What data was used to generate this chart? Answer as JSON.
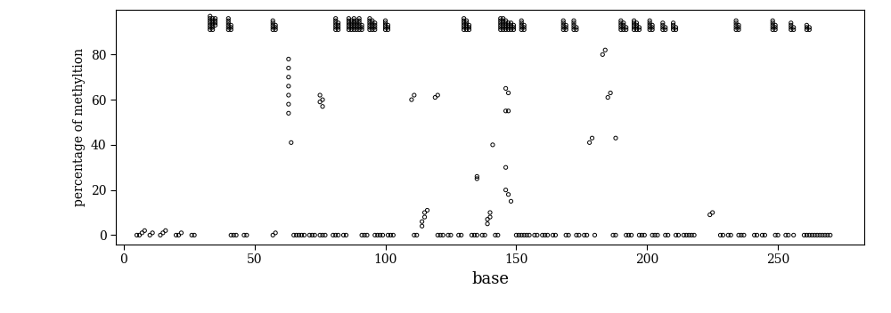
{
  "title": "",
  "xlabel": "base",
  "ylabel": "percentage of methyltion",
  "xlim": [
    -3,
    283
  ],
  "ylim": [
    -4,
    100
  ],
  "xticks": [
    0,
    50,
    100,
    150,
    200,
    250
  ],
  "yticks": [
    0,
    20,
    40,
    60,
    80
  ],
  "figsize": [
    10.0,
    3.52
  ],
  "dpi": 100,
  "background": "white",
  "marker": "o",
  "markersize": 3.0,
  "color": "black",
  "facecolor": "none",
  "points": [
    [
      5,
      0
    ],
    [
      6,
      0
    ],
    [
      7,
      1
    ],
    [
      8,
      2
    ],
    [
      10,
      0
    ],
    [
      11,
      1
    ],
    [
      14,
      0
    ],
    [
      15,
      1
    ],
    [
      16,
      2
    ],
    [
      20,
      0
    ],
    [
      21,
      0
    ],
    [
      22,
      1
    ],
    [
      26,
      0
    ],
    [
      27,
      0
    ],
    [
      33,
      91
    ],
    [
      33,
      92
    ],
    [
      33,
      93
    ],
    [
      33,
      94
    ],
    [
      33,
      95
    ],
    [
      33,
      96
    ],
    [
      33,
      97
    ],
    [
      34,
      91
    ],
    [
      34,
      92
    ],
    [
      34,
      93
    ],
    [
      34,
      94
    ],
    [
      34,
      95
    ],
    [
      34,
      96
    ],
    [
      35,
      93
    ],
    [
      35,
      94
    ],
    [
      35,
      95
    ],
    [
      35,
      96
    ],
    [
      40,
      91
    ],
    [
      40,
      92
    ],
    [
      40,
      93
    ],
    [
      40,
      94
    ],
    [
      40,
      95
    ],
    [
      40,
      96
    ],
    [
      41,
      91
    ],
    [
      41,
      92
    ],
    [
      41,
      93
    ],
    [
      41,
      0
    ],
    [
      42,
      0
    ],
    [
      43,
      0
    ],
    [
      46,
      0
    ],
    [
      47,
      0
    ],
    [
      57,
      91
    ],
    [
      57,
      92
    ],
    [
      57,
      93
    ],
    [
      57,
      94
    ],
    [
      57,
      95
    ],
    [
      58,
      91
    ],
    [
      58,
      92
    ],
    [
      58,
      93
    ],
    [
      57,
      0
    ],
    [
      58,
      1
    ],
    [
      63,
      78
    ],
    [
      63,
      74
    ],
    [
      63,
      70
    ],
    [
      63,
      66
    ],
    [
      63,
      62
    ],
    [
      63,
      58
    ],
    [
      63,
      54
    ],
    [
      64,
      41
    ],
    [
      65,
      0
    ],
    [
      66,
      0
    ],
    [
      67,
      0
    ],
    [
      68,
      0
    ],
    [
      69,
      0
    ],
    [
      71,
      0
    ],
    [
      72,
      0
    ],
    [
      73,
      0
    ],
    [
      75,
      0
    ],
    [
      76,
      0
    ],
    [
      77,
      0
    ],
    [
      75,
      62
    ],
    [
      75,
      59
    ],
    [
      76,
      60
    ],
    [
      76,
      57
    ],
    [
      80,
      0
    ],
    [
      81,
      0
    ],
    [
      82,
      0
    ],
    [
      81,
      91
    ],
    [
      81,
      92
    ],
    [
      81,
      93
    ],
    [
      81,
      94
    ],
    [
      81,
      95
    ],
    [
      81,
      96
    ],
    [
      82,
      91
    ],
    [
      82,
      92
    ],
    [
      82,
      93
    ],
    [
      82,
      94
    ],
    [
      84,
      0
    ],
    [
      85,
      0
    ],
    [
      86,
      91
    ],
    [
      86,
      92
    ],
    [
      86,
      93
    ],
    [
      86,
      94
    ],
    [
      86,
      95
    ],
    [
      86,
      96
    ],
    [
      87,
      91
    ],
    [
      87,
      92
    ],
    [
      87,
      93
    ],
    [
      87,
      94
    ],
    [
      87,
      95
    ],
    [
      88,
      91
    ],
    [
      88,
      92
    ],
    [
      88,
      93
    ],
    [
      88,
      94
    ],
    [
      88,
      95
    ],
    [
      88,
      96
    ],
    [
      89,
      91
    ],
    [
      89,
      92
    ],
    [
      89,
      93
    ],
    [
      89,
      94
    ],
    [
      89,
      95
    ],
    [
      90,
      91
    ],
    [
      90,
      92
    ],
    [
      90,
      93
    ],
    [
      90,
      94
    ],
    [
      90,
      95
    ],
    [
      90,
      96
    ],
    [
      91,
      91
    ],
    [
      91,
      92
    ],
    [
      91,
      93
    ],
    [
      91,
      0
    ],
    [
      92,
      0
    ],
    [
      93,
      0
    ],
    [
      94,
      91
    ],
    [
      94,
      92
    ],
    [
      94,
      93
    ],
    [
      94,
      94
    ],
    [
      94,
      95
    ],
    [
      94,
      96
    ],
    [
      95,
      91
    ],
    [
      95,
      92
    ],
    [
      95,
      93
    ],
    [
      95,
      94
    ],
    [
      95,
      95
    ],
    [
      96,
      91
    ],
    [
      96,
      92
    ],
    [
      96,
      93
    ],
    [
      96,
      94
    ],
    [
      96,
      0
    ],
    [
      97,
      0
    ],
    [
      98,
      0
    ],
    [
      99,
      0
    ],
    [
      100,
      91
    ],
    [
      100,
      92
    ],
    [
      100,
      93
    ],
    [
      100,
      94
    ],
    [
      100,
      95
    ],
    [
      101,
      91
    ],
    [
      101,
      92
    ],
    [
      101,
      93
    ],
    [
      101,
      0
    ],
    [
      102,
      0
    ],
    [
      103,
      0
    ],
    [
      110,
      60
    ],
    [
      111,
      62
    ],
    [
      111,
      0
    ],
    [
      112,
      0
    ],
    [
      114,
      4
    ],
    [
      114,
      6
    ],
    [
      115,
      8
    ],
    [
      115,
      10
    ],
    [
      116,
      11
    ],
    [
      119,
      61
    ],
    [
      120,
      62
    ],
    [
      120,
      0
    ],
    [
      121,
      0
    ],
    [
      122,
      0
    ],
    [
      124,
      0
    ],
    [
      125,
      0
    ],
    [
      128,
      0
    ],
    [
      129,
      0
    ],
    [
      130,
      91
    ],
    [
      130,
      92
    ],
    [
      130,
      93
    ],
    [
      130,
      94
    ],
    [
      130,
      95
    ],
    [
      130,
      96
    ],
    [
      131,
      91
    ],
    [
      131,
      92
    ],
    [
      131,
      93
    ],
    [
      131,
      94
    ],
    [
      131,
      95
    ],
    [
      132,
      91
    ],
    [
      132,
      92
    ],
    [
      132,
      93
    ],
    [
      133,
      0
    ],
    [
      134,
      0
    ],
    [
      135,
      0
    ],
    [
      135,
      25
    ],
    [
      135,
      26
    ],
    [
      137,
      0
    ],
    [
      138,
      0
    ],
    [
      139,
      5
    ],
    [
      139,
      7
    ],
    [
      140,
      8
    ],
    [
      140,
      10
    ],
    [
      141,
      40
    ],
    [
      142,
      0
    ],
    [
      143,
      0
    ],
    [
      144,
      91
    ],
    [
      144,
      92
    ],
    [
      144,
      93
    ],
    [
      144,
      94
    ],
    [
      144,
      95
    ],
    [
      144,
      96
    ],
    [
      145,
      91
    ],
    [
      145,
      92
    ],
    [
      145,
      93
    ],
    [
      145,
      94
    ],
    [
      145,
      95
    ],
    [
      145,
      96
    ],
    [
      146,
      91
    ],
    [
      146,
      92
    ],
    [
      146,
      93
    ],
    [
      146,
      94
    ],
    [
      146,
      95
    ],
    [
      147,
      91
    ],
    [
      147,
      92
    ],
    [
      147,
      93
    ],
    [
      147,
      94
    ],
    [
      148,
      91
    ],
    [
      148,
      92
    ],
    [
      148,
      93
    ],
    [
      148,
      94
    ],
    [
      149,
      91
    ],
    [
      149,
      92
    ],
    [
      149,
      93
    ],
    [
      146,
      65
    ],
    [
      147,
      63
    ],
    [
      146,
      55
    ],
    [
      147,
      55
    ],
    [
      146,
      30
    ],
    [
      146,
      20
    ],
    [
      147,
      18
    ],
    [
      148,
      15
    ],
    [
      150,
      0
    ],
    [
      151,
      0
    ],
    [
      152,
      0
    ],
    [
      152,
      91
    ],
    [
      152,
      92
    ],
    [
      152,
      93
    ],
    [
      152,
      94
    ],
    [
      152,
      95
    ],
    [
      153,
      91
    ],
    [
      153,
      92
    ],
    [
      153,
      93
    ],
    [
      153,
      0
    ],
    [
      154,
      0
    ],
    [
      155,
      0
    ],
    [
      157,
      0
    ],
    [
      158,
      0
    ],
    [
      160,
      0
    ],
    [
      161,
      0
    ],
    [
      162,
      0
    ],
    [
      164,
      0
    ],
    [
      165,
      0
    ],
    [
      168,
      91
    ],
    [
      168,
      92
    ],
    [
      168,
      93
    ],
    [
      168,
      94
    ],
    [
      168,
      95
    ],
    [
      169,
      91
    ],
    [
      169,
      92
    ],
    [
      169,
      93
    ],
    [
      169,
      0
    ],
    [
      170,
      0
    ],
    [
      172,
      91
    ],
    [
      172,
      92
    ],
    [
      172,
      93
    ],
    [
      172,
      94
    ],
    [
      172,
      95
    ],
    [
      173,
      91
    ],
    [
      173,
      92
    ],
    [
      173,
      0
    ],
    [
      174,
      0
    ],
    [
      176,
      0
    ],
    [
      177,
      0
    ],
    [
      178,
      41
    ],
    [
      179,
      43
    ],
    [
      180,
      0
    ],
    [
      183,
      80
    ],
    [
      184,
      82
    ],
    [
      185,
      61
    ],
    [
      186,
      63
    ],
    [
      187,
      0
    ],
    [
      188,
      0
    ],
    [
      188,
      43
    ],
    [
      190,
      91
    ],
    [
      190,
      92
    ],
    [
      190,
      93
    ],
    [
      190,
      94
    ],
    [
      190,
      95
    ],
    [
      191,
      91
    ],
    [
      191,
      92
    ],
    [
      191,
      93
    ],
    [
      191,
      94
    ],
    [
      192,
      91
    ],
    [
      192,
      92
    ],
    [
      192,
      0
    ],
    [
      193,
      0
    ],
    [
      194,
      0
    ],
    [
      195,
      91
    ],
    [
      195,
      92
    ],
    [
      195,
      93
    ],
    [
      195,
      94
    ],
    [
      195,
      95
    ],
    [
      196,
      91
    ],
    [
      196,
      92
    ],
    [
      196,
      93
    ],
    [
      196,
      94
    ],
    [
      197,
      91
    ],
    [
      197,
      92
    ],
    [
      197,
      0
    ],
    [
      198,
      0
    ],
    [
      199,
      0
    ],
    [
      201,
      91
    ],
    [
      201,
      92
    ],
    [
      201,
      93
    ],
    [
      201,
      94
    ],
    [
      201,
      95
    ],
    [
      202,
      91
    ],
    [
      202,
      92
    ],
    [
      202,
      93
    ],
    [
      202,
      0
    ],
    [
      203,
      0
    ],
    [
      204,
      0
    ],
    [
      206,
      91
    ],
    [
      206,
      92
    ],
    [
      206,
      93
    ],
    [
      206,
      94
    ],
    [
      207,
      91
    ],
    [
      207,
      92
    ],
    [
      207,
      0
    ],
    [
      208,
      0
    ],
    [
      210,
      91
    ],
    [
      210,
      92
    ],
    [
      210,
      93
    ],
    [
      210,
      94
    ],
    [
      211,
      91
    ],
    [
      211,
      92
    ],
    [
      211,
      0
    ],
    [
      212,
      0
    ],
    [
      214,
      0
    ],
    [
      215,
      0
    ],
    [
      216,
      0
    ],
    [
      217,
      0
    ],
    [
      218,
      0
    ],
    [
      224,
      9
    ],
    [
      225,
      10
    ],
    [
      228,
      0
    ],
    [
      229,
      0
    ],
    [
      231,
      0
    ],
    [
      232,
      0
    ],
    [
      234,
      91
    ],
    [
      234,
      92
    ],
    [
      234,
      93
    ],
    [
      234,
      94
    ],
    [
      234,
      95
    ],
    [
      235,
      91
    ],
    [
      235,
      92
    ],
    [
      235,
      93
    ],
    [
      235,
      0
    ],
    [
      236,
      0
    ],
    [
      237,
      0
    ],
    [
      241,
      0
    ],
    [
      242,
      0
    ],
    [
      244,
      0
    ],
    [
      245,
      0
    ],
    [
      248,
      91
    ],
    [
      248,
      92
    ],
    [
      248,
      93
    ],
    [
      248,
      94
    ],
    [
      248,
      95
    ],
    [
      249,
      91
    ],
    [
      249,
      92
    ],
    [
      249,
      93
    ],
    [
      249,
      0
    ],
    [
      250,
      0
    ],
    [
      253,
      0
    ],
    [
      254,
      0
    ],
    [
      255,
      91
    ],
    [
      255,
      92
    ],
    [
      255,
      93
    ],
    [
      255,
      94
    ],
    [
      256,
      91
    ],
    [
      256,
      92
    ],
    [
      256,
      0
    ],
    [
      260,
      0
    ],
    [
      261,
      0
    ],
    [
      262,
      0
    ],
    [
      263,
      0
    ],
    [
      264,
      0
    ],
    [
      265,
      0
    ],
    [
      266,
      0
    ],
    [
      267,
      0
    ],
    [
      268,
      0
    ],
    [
      269,
      0
    ],
    [
      270,
      0
    ],
    [
      261,
      91
    ],
    [
      261,
      92
    ],
    [
      261,
      93
    ],
    [
      262,
      91
    ],
    [
      262,
      92
    ]
  ]
}
